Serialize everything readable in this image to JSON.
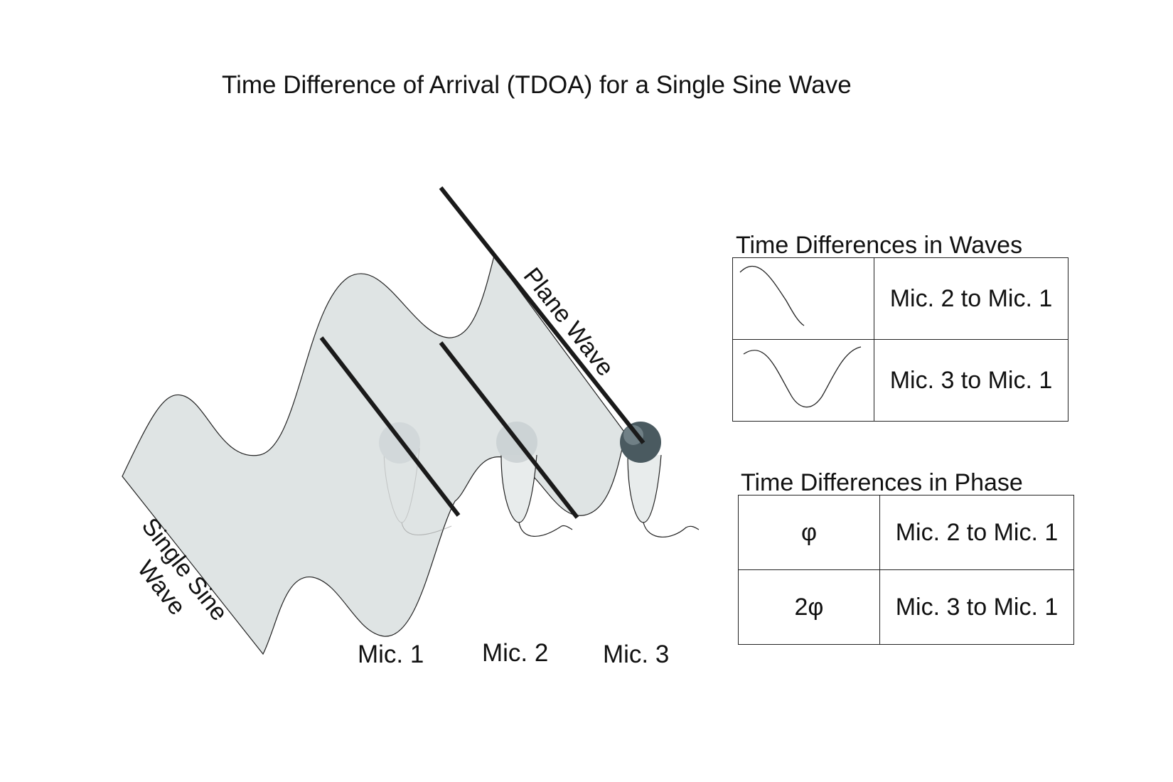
{
  "title": "Time Difference of Arrival (TDOA) for a Single Sine Wave",
  "labels": {
    "single_sine_wave_line1": "Single Sine",
    "single_sine_wave_line2": "Wave",
    "plane_wave": "Plane Wave",
    "mic1": "Mic. 1",
    "mic2": "Mic. 2",
    "mic3": "Mic. 3"
  },
  "waves_table": {
    "title": "Time Differences in Waves",
    "rows": [
      {
        "icon": "partial-sine-wave-icon",
        "label": "Mic. 2 to Mic. 1"
      },
      {
        "icon": "full-sine-wave-icon",
        "label": "Mic. 3 to Mic. 1"
      }
    ]
  },
  "phase_table": {
    "title": "Time Differences in Phase",
    "rows": [
      {
        "phase": "φ",
        "label": "Mic. 2 to Mic. 1"
      },
      {
        "phase": "2φ",
        "label": "Mic. 3 to Mic. 1"
      }
    ]
  },
  "colors": {
    "wave_fill": "#dfe4e4",
    "outline": "#222222",
    "mic_ghost": "#c9d0d2",
    "mic3_dark": "#4a5a60"
  }
}
